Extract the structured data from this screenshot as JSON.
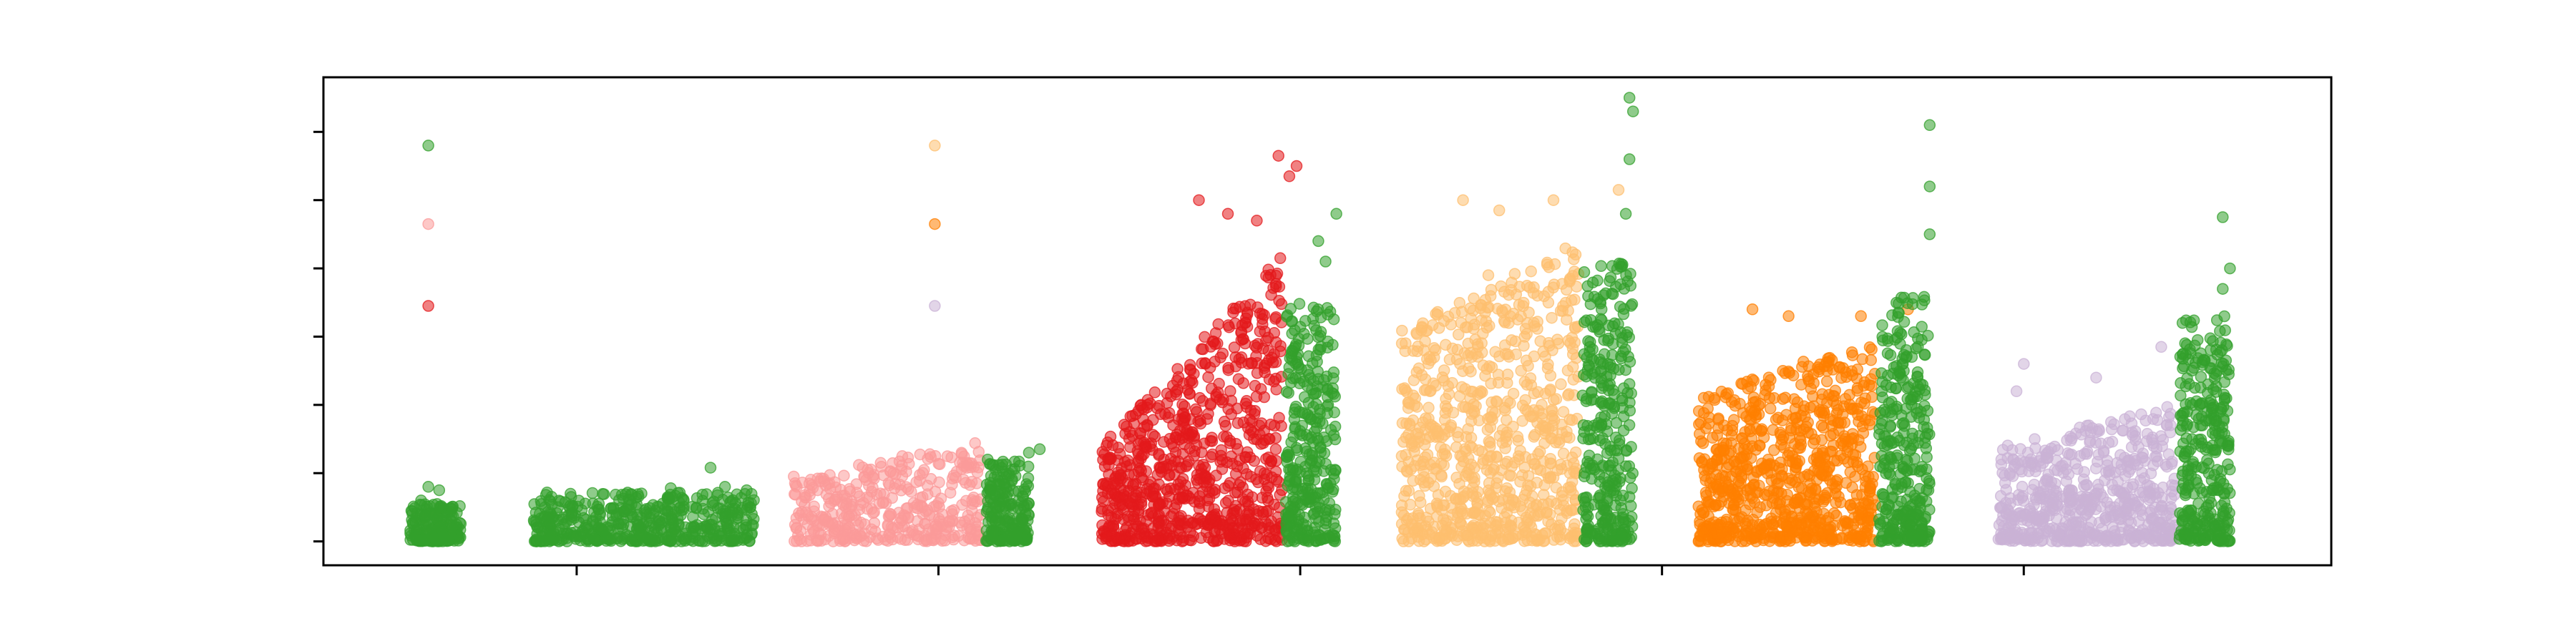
{
  "chart_data": {
    "type": "scatter",
    "title": "",
    "xlabel": "",
    "ylabel": "",
    "x_tick_labels": [
      "",
      "",
      "",
      "",
      ""
    ],
    "y_tick_labels": [
      "",
      "",
      "",
      "",
      "",
      "",
      ""
    ],
    "xlim": [
      -0.7,
      4.85
    ],
    "ylim": [
      -0.35,
      6.8
    ],
    "x_ticks": [
      0,
      1,
      2,
      3,
      4
    ],
    "y_ticks": [
      0,
      1,
      2,
      3,
      4,
      5,
      6
    ],
    "grid": false,
    "legend": "none",
    "series": [
      {
        "color": "#33a02c",
        "values": [
          {
            "x": -0.41,
            "y": 5.8
          },
          {
            "x": -0.41,
            "y": 0.8
          },
          {
            "x": -0.38,
            "y": 0.75
          },
          {
            "x": -0.43,
            "y": 0.6
          },
          {
            "x": 0.37,
            "y": 1.08
          },
          {
            "x": 0.47,
            "y": 0.75
          },
          {
            "x": 0.41,
            "y": 0.8
          },
          {
            "x": 0.26,
            "y": 0.78
          }
        ],
        "groups": [
          {
            "x_range": [
              -0.46,
              -0.32
            ],
            "y_max": 0.55,
            "density": 180
          },
          {
            "x_range": [
              -0.12,
              0.49
            ],
            "y_max": 0.72,
            "density": 500
          }
        ]
      },
      {
        "color": "#fb9a99",
        "values": [
          {
            "x": -0.41,
            "y": 4.65
          },
          {
            "x": 0.8,
            "y": 0.9
          },
          {
            "x": 0.9,
            "y": 1.25
          },
          {
            "x": 0.78,
            "y": 1.12
          },
          {
            "x": 0.6,
            "y": 0.95
          }
        ],
        "groups": [
          {
            "x_range": [
              0.6,
              1.12
            ],
            "y_max_start": 0.85,
            "y_max_end": 1.5,
            "density": 400
          }
        ]
      },
      {
        "color": "#33a02c",
        "values": [
          {
            "x": 1.28,
            "y": 1.35
          },
          {
            "x": 1.25,
            "y": 1.3
          }
        ],
        "groups": [
          {
            "x_range": [
              1.13,
              1.25
            ],
            "y_max": 1.2,
            "density": 220
          }
        ]
      },
      {
        "color": "#e31a1c",
        "values": [
          {
            "x": -0.41,
            "y": 3.45
          },
          {
            "x": 1.72,
            "y": 5.0
          },
          {
            "x": 1.94,
            "y": 5.65
          },
          {
            "x": 1.97,
            "y": 5.35
          },
          {
            "x": 1.99,
            "y": 5.5
          },
          {
            "x": 1.8,
            "y": 4.8
          },
          {
            "x": 1.88,
            "y": 4.7
          }
        ],
        "groups": [
          {
            "x_range": [
              1.45,
              1.95
            ],
            "y_max_start": 1.4,
            "y_max_end": 4.2,
            "density": 800
          }
        ]
      },
      {
        "color": "#33a02c",
        "values": [
          {
            "x": 2.1,
            "y": 4.8
          },
          {
            "x": 2.05,
            "y": 4.4
          },
          {
            "x": 2.07,
            "y": 4.1
          }
        ],
        "groups": [
          {
            "x_range": [
              1.96,
              2.1
            ],
            "y_max": 3.5,
            "density": 320
          }
        ]
      },
      {
        "color": "#fdbf6f",
        "values": [
          {
            "x": 0.99,
            "y": 5.8
          },
          {
            "x": 2.45,
            "y": 5.0
          },
          {
            "x": 2.55,
            "y": 4.85
          },
          {
            "x": 2.7,
            "y": 5.0
          },
          {
            "x": 2.88,
            "y": 5.15
          },
          {
            "x": 2.52,
            "y": 3.9
          }
        ],
        "groups": [
          {
            "x_range": [
              2.28,
              2.77
            ],
            "y_max_start": 3.1,
            "y_max_end": 4.4,
            "density": 800
          }
        ]
      },
      {
        "color": "#33a02c",
        "values": [
          {
            "x": 2.91,
            "y": 6.5
          },
          {
            "x": 2.92,
            "y": 6.3
          },
          {
            "x": 2.91,
            "y": 5.6
          },
          {
            "x": 2.9,
            "y": 4.8
          }
        ],
        "groups": [
          {
            "x_range": [
              2.78,
              2.92
            ],
            "y_max": 4.1,
            "density": 320
          }
        ]
      },
      {
        "color": "#ff7f00",
        "values": [
          {
            "x": 0.99,
            "y": 4.65
          },
          {
            "x": 3.25,
            "y": 3.4
          },
          {
            "x": 3.35,
            "y": 3.3
          },
          {
            "x": 3.55,
            "y": 3.3
          },
          {
            "x": 3.68,
            "y": 3.4
          }
        ],
        "groups": [
          {
            "x_range": [
              3.1,
              3.59
            ],
            "y_max_start": 2.1,
            "y_max_end": 3.0,
            "density": 800
          }
        ]
      },
      {
        "color": "#33a02c",
        "values": [
          {
            "x": 3.74,
            "y": 6.1
          },
          {
            "x": 3.74,
            "y": 5.2
          },
          {
            "x": 3.74,
            "y": 4.5
          }
        ],
        "groups": [
          {
            "x_range": [
              3.6,
              3.74
            ],
            "y_max": 3.6,
            "density": 320
          }
        ]
      },
      {
        "color": "#cab2d6",
        "values": [
          {
            "x": 0.99,
            "y": 3.45
          },
          {
            "x": 4.0,
            "y": 2.6
          },
          {
            "x": 4.2,
            "y": 2.4
          },
          {
            "x": 4.38,
            "y": 2.85
          },
          {
            "x": 3.98,
            "y": 2.2
          }
        ],
        "groups": [
          {
            "x_range": [
              3.93,
              4.42
            ],
            "y_max_start": 1.4,
            "y_max_end": 2.0,
            "density": 600
          }
        ]
      },
      {
        "color": "#33a02c",
        "values": [
          {
            "x": 4.55,
            "y": 4.75
          },
          {
            "x": 4.57,
            "y": 4.0
          },
          {
            "x": 4.55,
            "y": 3.7
          }
        ],
        "groups": [
          {
            "x_range": [
              4.43,
              4.57
            ],
            "y_max": 3.3,
            "density": 320
          }
        ]
      }
    ]
  }
}
